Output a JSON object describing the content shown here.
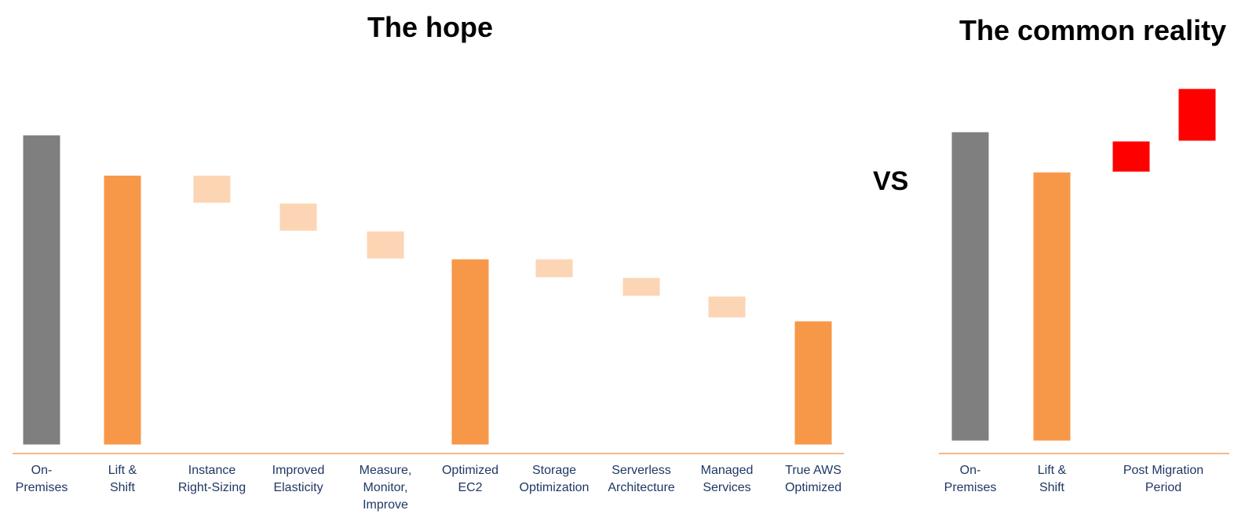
{
  "titles": {
    "hope": "The hope",
    "reality": "The common reality",
    "vs": "VS"
  },
  "colors": {
    "baseline": "#f5a15c",
    "on_premises": "#7f7f7f",
    "total": "#f79848",
    "reduction": "#fcd5b4",
    "increase": "#ff0000",
    "label": "#1f3864"
  },
  "chart_data": [
    {
      "type": "waterfall",
      "title": "The hope",
      "ylim": [
        0,
        100
      ],
      "categories": [
        [
          "On-",
          "Premises"
        ],
        [
          "Lift &",
          "Shift"
        ],
        [
          "Instance",
          "Right-Sizing"
        ],
        [
          "Improved",
          "Elasticity"
        ],
        [
          "Measure,",
          "Monitor,",
          "Improve"
        ],
        [
          "Optimized",
          "EC2"
        ],
        [
          "Storage",
          "Optimization"
        ],
        [
          "Serverless",
          "Architecture"
        ],
        [
          "Managed",
          "Services"
        ],
        [
          "True AWS",
          "Optimized"
        ]
      ],
      "bars": [
        {
          "kind": "on_premises",
          "start": 0,
          "end": 100
        },
        {
          "kind": "total",
          "start": 0,
          "end": 87
        },
        {
          "kind": "reduction",
          "start": 78,
          "end": 87
        },
        {
          "kind": "reduction",
          "start": 69,
          "end": 78
        },
        {
          "kind": "reduction",
          "start": 60,
          "end": 69
        },
        {
          "kind": "total",
          "start": 0,
          "end": 60
        },
        {
          "kind": "reduction",
          "start": 54,
          "end": 60
        },
        {
          "kind": "reduction",
          "start": 48,
          "end": 54
        },
        {
          "kind": "reduction",
          "start": 41,
          "end": 48
        },
        {
          "kind": "total",
          "start": 0,
          "end": 40
        }
      ]
    },
    {
      "type": "waterfall",
      "title": "The common reality",
      "ylim": [
        0,
        100
      ],
      "categories": [
        [
          "On-",
          "Premises"
        ],
        [
          "Lift &",
          "Shift"
        ],
        [
          "Post Migration",
          "Period"
        ]
      ],
      "bars": [
        {
          "kind": "on_premises",
          "start": 0,
          "end": 100
        },
        {
          "kind": "total",
          "start": 0,
          "end": 87
        },
        {
          "kind": "increase",
          "start": 87,
          "end": 97
        },
        {
          "kind": "increase",
          "start": 97,
          "end": 114
        }
      ]
    }
  ]
}
